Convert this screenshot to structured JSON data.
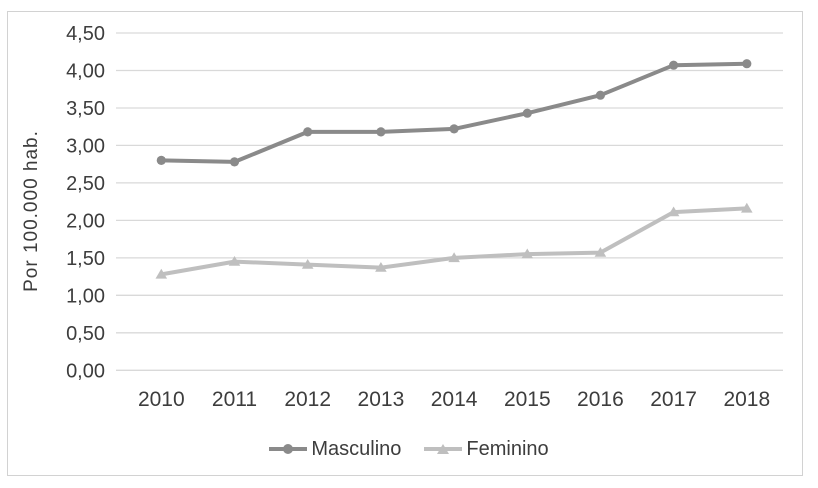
{
  "chart_data": {
    "type": "line",
    "title": "",
    "xlabel": "",
    "ylabel": "Por 100.000 hab.",
    "categories": [
      "2010",
      "2011",
      "2012",
      "2013",
      "2014",
      "2015",
      "2016",
      "2017",
      "2018"
    ],
    "series": [
      {
        "name": "Masculino",
        "marker": "circle",
        "color": "#8a8a8a",
        "values": [
          2.8,
          2.78,
          3.18,
          3.18,
          3.22,
          3.43,
          3.67,
          4.07,
          4.09
        ]
      },
      {
        "name": "Feminino",
        "marker": "triangle",
        "color": "#bfbfbf",
        "values": [
          1.28,
          1.45,
          1.41,
          1.37,
          1.5,
          1.55,
          1.57,
          2.11,
          2.16
        ]
      }
    ],
    "ylim": [
      0,
      4.5
    ],
    "ytick_values": [
      0,
      0.5,
      1,
      1.5,
      2,
      2.5,
      3,
      3.5,
      4,
      4.5
    ],
    "ytick_labels": [
      "0,00",
      "0,50",
      "1,00",
      "1,50",
      "2,00",
      "2,50",
      "3,00",
      "3,50",
      "4,00",
      "4,50"
    ],
    "decimal_separator": ",",
    "grid": "horizontal",
    "legend_position": "bottom",
    "colors": {
      "gridline": "#d9d9d9",
      "axis_text": "#3d3d3d",
      "frame_border": "#d2d2d2",
      "background": "#ffffff"
    }
  }
}
